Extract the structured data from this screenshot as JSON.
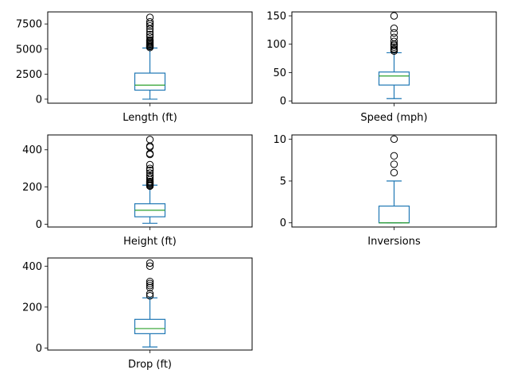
{
  "chart_data": [
    {
      "type": "box",
      "category": "Length (ft)",
      "ylim": [
        -400,
        8700
      ],
      "yticks": [
        0,
        2500,
        5000,
        7500
      ],
      "box": {
        "whislo": 0,
        "q1": 900,
        "median": 1400,
        "q3": 2600,
        "whishi": 5100
      },
      "fliers": [
        5150,
        5250,
        5300,
        5400,
        5500,
        5600,
        5700,
        5800,
        5900,
        6200,
        6450,
        6700,
        7000,
        7300,
        7500,
        7700,
        8150
      ]
    },
    {
      "type": "box",
      "category": "Speed (mph)",
      "ylim": [
        -4,
        157
      ],
      "yticks": [
        0,
        50,
        100,
        150
      ],
      "box": {
        "whislo": 4,
        "q1": 28,
        "median": 44,
        "q3": 51,
        "whishi": 85
      },
      "fliers": [
        88,
        90,
        92,
        95,
        98,
        100,
        105,
        112,
        120,
        128,
        150
      ]
    },
    {
      "type": "box",
      "category": "Height (ft)",
      "ylim": [
        -15,
        480
      ],
      "yticks": [
        0,
        200,
        400
      ],
      "box": {
        "whislo": 5,
        "q1": 40,
        "median": 75,
        "q3": 110,
        "whishi": 210
      },
      "fliers": [
        205,
        210,
        215,
        220,
        225,
        230,
        240,
        250,
        260,
        275,
        290,
        300,
        320,
        375,
        380,
        415,
        420,
        455
      ]
    },
    {
      "type": "box",
      "category": "Inversions",
      "ylim": [
        -0.5,
        10.5
      ],
      "yticks": [
        0,
        5,
        10
      ],
      "box": {
        "whislo": 0,
        "q1": 0,
        "median": 0,
        "q3": 2,
        "whishi": 5
      },
      "fliers": [
        6,
        7,
        8,
        10
      ]
    },
    {
      "type": "box",
      "category": "Drop (ft)",
      "ylim": [
        -10,
        440
      ],
      "yticks": [
        0,
        200,
        400
      ],
      "box": {
        "whislo": 5,
        "q1": 70,
        "median": 95,
        "q3": 140,
        "whishi": 245
      },
      "fliers": [
        255,
        265,
        295,
        305,
        315,
        325,
        400,
        415
      ]
    }
  ]
}
